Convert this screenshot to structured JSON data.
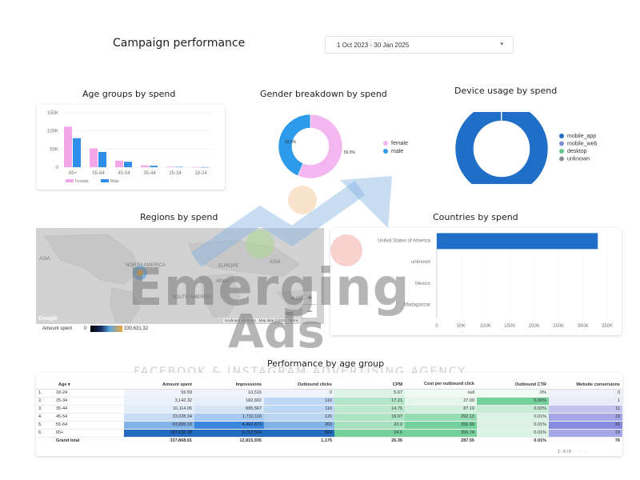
{
  "header": {
    "title": "Campaign performance",
    "date_range": "1 Oct 2023 - 30 Jan 2025"
  },
  "age_chart": {
    "title": "Age groups by spend",
    "chart_data": {
      "type": "bar",
      "categories": [
        "65+",
        "55-64",
        "45-54",
        "35-44",
        "25-34",
        "18-24"
      ],
      "series": [
        {
          "name": "Female",
          "values": [
            112000,
            52000,
            18000,
            5000,
            1500,
            500
          ]
        },
        {
          "name": "Male",
          "values": [
            80000,
            42000,
            15000,
            4000,
            1000,
            300
          ]
        }
      ],
      "yticks": [
        "150K",
        "100K",
        "50K",
        "0"
      ],
      "ylim": [
        0,
        150000
      ]
    },
    "colors": {
      "female": "#f4a6e8",
      "male": "#2f8ee8"
    }
  },
  "gender_chart": {
    "title": "Gender breakdown by spend",
    "chart_data": {
      "type": "pie",
      "labels": [
        "female",
        "male"
      ],
      "values": [
        56.5,
        43.5
      ],
      "data_labels": [
        "56.5%",
        "43.5%"
      ]
    },
    "colors": {
      "female": "#f4b6f0",
      "male": "#2e9bea"
    }
  },
  "device_chart": {
    "title": "Device usage by spend",
    "chart_data": {
      "type": "pie",
      "labels": [
        "mobile_app",
        "mobile_web",
        "desktop",
        "unknown"
      ],
      "values": [
        99.8,
        0.1,
        0.05,
        0.05
      ],
      "data_labels": [
        "99.8%"
      ]
    },
    "colors": {
      "mobile_app": "#1f6fc9",
      "mobile_web": "#7b8fd6",
      "desktop": "#63c98a",
      "unknown": "#8a8f98"
    }
  },
  "regions": {
    "title": "Regions by spend",
    "map_labels": [
      "ASIA",
      "NORTH AMERICA",
      "SOUTH AMERICA",
      "EUROPE",
      "Africa",
      "ASIA",
      "AUSTRALIA"
    ],
    "legend_label": "Amount spent",
    "legend_min": "0",
    "legend_max": "330,631.32",
    "attribution": [
      "Keyboard shortcuts",
      "Map data ©2025",
      "Terms"
    ],
    "google": "Google",
    "zoom_in": "+",
    "zoom_out": "−"
  },
  "countries": {
    "title": "Countries by spend",
    "chart_data": {
      "type": "bar",
      "orientation": "horizontal",
      "categories": [
        "United States of America",
        "unknown",
        "Mexico",
        "Madagascar"
      ],
      "values": [
        330631,
        0,
        0,
        0
      ],
      "xticks": [
        "0",
        "50K",
        "100K",
        "150K",
        "200K",
        "250K",
        "300K",
        "350K"
      ],
      "xlim": [
        0,
        350000
      ]
    },
    "color": "#1f6fc9"
  },
  "table": {
    "title": "Performance by age group",
    "columns": [
      "Age",
      "Amount spent",
      "Impressions",
      "Outbound clicks",
      "CPM",
      "Cost per outbound click",
      "Outbound CTR",
      "Website conversions"
    ],
    "sort_indicator": "▾",
    "rows": [
      {
        "n": "1.",
        "cells": [
          "18-24",
          "59.59",
          "10,516",
          "0",
          "5.67",
          "null",
          "0%",
          "0"
        ]
      },
      {
        "n": "2.",
        "cells": [
          "25-34",
          "3,142.32",
          "182,602",
          "116",
          "17.21",
          "27.09",
          "0.06%",
          "1"
        ]
      },
      {
        "n": "3.",
        "cells": [
          "35-44",
          "10,114.05",
          "685,567",
          "116",
          "14.75",
          "87.19",
          "0.02%",
          "11"
        ]
      },
      {
        "n": "4.",
        "cells": [
          "45-54",
          "33,028.34",
          "1,732,116",
          "126",
          "19.07",
          "262.13",
          "0.01%",
          "19"
        ]
      },
      {
        "n": "5.",
        "cells": [
          "55-64",
          "93,888.18",
          "4,492,473",
          "263",
          "20.9",
          "356.99",
          "0.01%",
          "26"
        ]
      },
      {
        "n": "6.",
        "cells": [
          "65+",
          "197,636.38",
          "5,712,554",
          "554",
          "34.6",
          "356.74",
          "0.01%",
          "19"
        ]
      }
    ],
    "total": [
      "Grand total",
      "337,868.91",
      "12,815,935",
      "1,175",
      "26.36",
      "287.55",
      "0.01%",
      "76"
    ],
    "pagination": "1 - 6 / 6"
  },
  "watermark": {
    "line1": "Emerging",
    "line2": "Ads",
    "tagline": "FACEBOOK & INSTAGRAM ADVERTISING AGENCY"
  }
}
